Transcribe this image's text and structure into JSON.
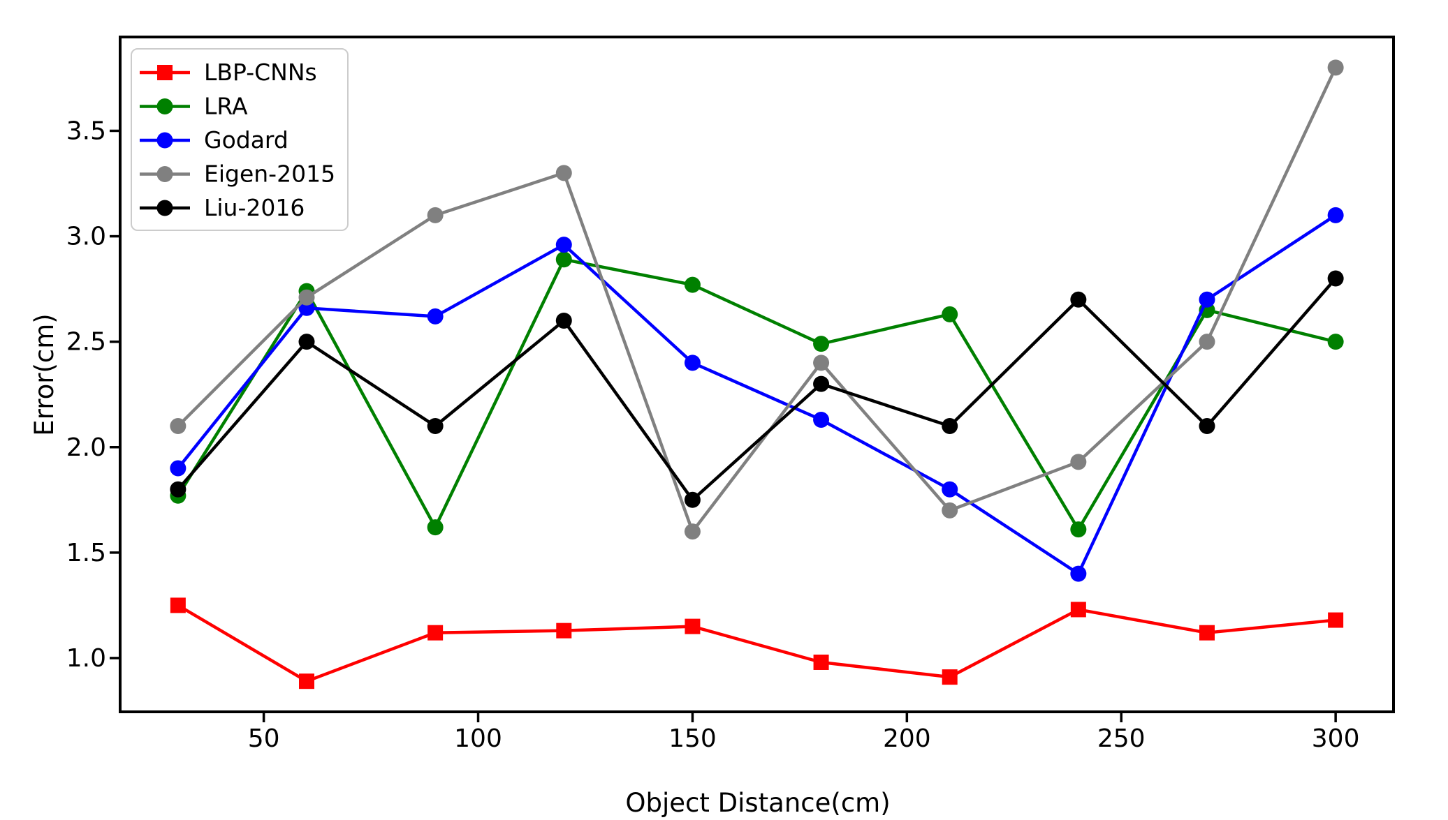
{
  "figure": {
    "background": "#ffffff",
    "plot_background": "#ffffff",
    "spine_color": "#000000"
  },
  "chart_data": {
    "type": "line",
    "x": [
      30,
      60,
      90,
      120,
      150,
      180,
      210,
      240,
      270,
      300
    ],
    "series": [
      {
        "name": "LBP-CNNs",
        "color": "#ff0000",
        "marker": "square",
        "values": [
          1.25,
          0.89,
          1.12,
          1.13,
          1.15,
          0.98,
          0.91,
          1.23,
          1.12,
          1.18
        ]
      },
      {
        "name": "LRA",
        "color": "#008000",
        "marker": "circle",
        "values": [
          1.77,
          2.74,
          1.62,
          2.89,
          2.77,
          2.49,
          2.63,
          1.61,
          2.65,
          2.5
        ]
      },
      {
        "name": "Godard",
        "color": "#0000ff",
        "marker": "circle",
        "values": [
          1.9,
          2.66,
          2.62,
          2.96,
          2.4,
          2.13,
          1.8,
          1.4,
          2.7,
          3.1
        ]
      },
      {
        "name": "Eigen-2015",
        "color": "#808080",
        "marker": "circle",
        "values": [
          2.1,
          2.71,
          3.1,
          3.3,
          1.6,
          2.4,
          1.7,
          1.93,
          2.5,
          3.8
        ]
      },
      {
        "name": "Liu-2016",
        "color": "#000000",
        "marker": "circle",
        "values": [
          1.8,
          2.5,
          2.1,
          2.6,
          1.75,
          2.3,
          2.1,
          2.7,
          2.1,
          2.8
        ]
      }
    ],
    "xlabel": "Object Distance(cm)",
    "ylabel": "Error(cm)",
    "x_ticks": [
      50,
      100,
      150,
      200,
      250,
      300
    ],
    "y_ticks": [
      1.0,
      1.5,
      2.0,
      2.5,
      3.0,
      3.5
    ],
    "xlim": [
      16.5,
      313.5
    ],
    "ylim": [
      0.745,
      3.945
    ],
    "grid": false,
    "legend_position": "upper left"
  }
}
